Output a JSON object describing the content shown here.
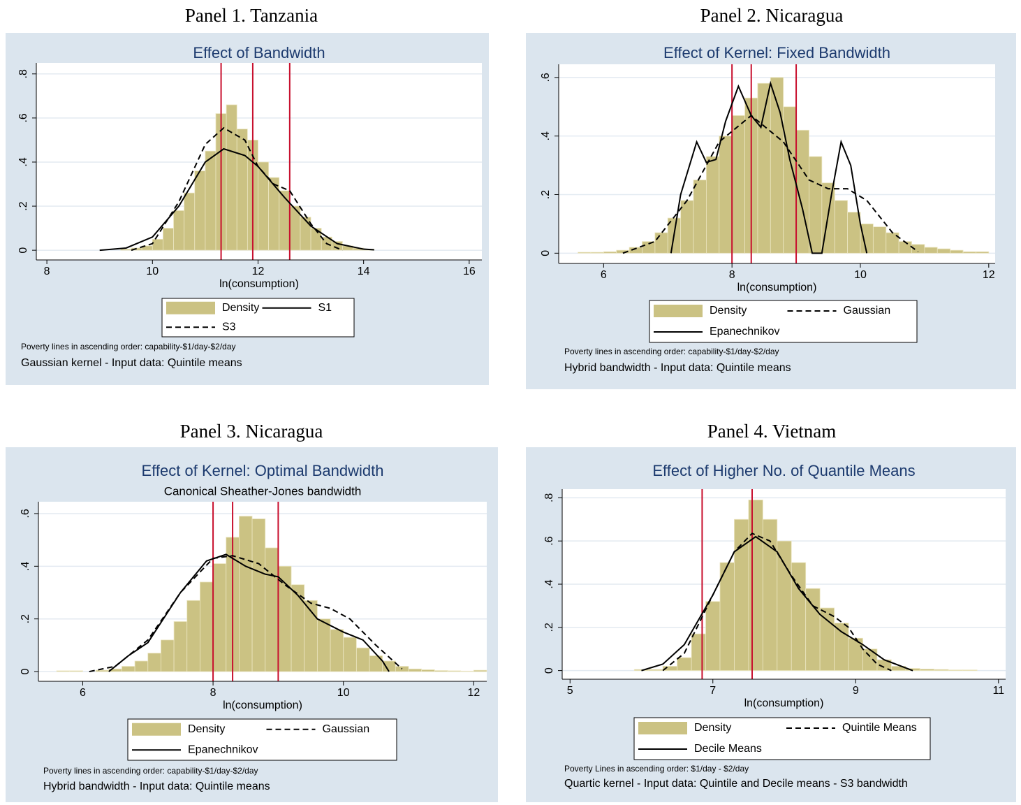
{
  "chart_data": [
    {
      "type": "histogram",
      "panel_title": "Panel 1. Tanzania",
      "title": "Effect of Bandwidth",
      "xlabel": "ln(consumption)",
      "hist_name": "Density",
      "hist_color": "#cbc283",
      "bins": [
        9.4,
        9.6,
        9.8,
        10.0,
        10.2,
        10.4,
        10.6,
        10.8,
        11.0,
        11.2,
        11.4,
        11.6,
        11.8,
        12.0,
        12.2,
        12.4,
        12.6,
        12.8,
        13.0,
        13.2,
        13.4,
        13.6,
        13.8,
        14.0,
        14.2
      ],
      "values": [
        0.005,
        0.01,
        0.02,
        0.05,
        0.1,
        0.18,
        0.26,
        0.36,
        0.45,
        0.62,
        0.66,
        0.55,
        0.5,
        0.4,
        0.33,
        0.27,
        0.2,
        0.15,
        0.1,
        0.06,
        0.04,
        0.02,
        0.01,
        0.005
      ],
      "series": [
        {
          "name": "S1",
          "color": "#000000",
          "style": "solid",
          "x": [
            9,
            9.5,
            10,
            10.5,
            11,
            11.35,
            11.75,
            12,
            12.5,
            13,
            13.5,
            14,
            14.2
          ],
          "values": [
            0,
            0.01,
            0.06,
            0.2,
            0.4,
            0.46,
            0.43,
            0.38,
            0.24,
            0.11,
            0.03,
            0.005,
            0.002
          ]
        },
        {
          "name": "S3",
          "color": "#000000",
          "style": "dashed",
          "x": [
            9.6,
            10,
            10.5,
            11,
            11.35,
            11.75,
            12,
            12.3,
            12.6,
            13,
            13.3,
            13.6
          ],
          "values": [
            0,
            0.03,
            0.22,
            0.48,
            0.555,
            0.5,
            0.38,
            0.3,
            0.27,
            0.12,
            0.03,
            0
          ]
        }
      ],
      "vlines": [
        11.3,
        11.9,
        12.6
      ],
      "vline_color": "#c8102e",
      "xlim": [
        7.8,
        16.24
      ],
      "xticks": [
        8,
        10,
        12,
        14,
        16
      ],
      "ylim": [
        -0.044,
        0.85
      ],
      "yticks": [
        0,
        {
          "value": 0.2,
          "label": ".2"
        },
        {
          "value": 0.4,
          "label": ".4"
        },
        {
          "value": 0.6,
          "label": ".6"
        },
        {
          "value": 0.8,
          "label": ".8"
        }
      ],
      "grid": true,
      "notes": [
        "Poverty lines in ascending order: capability-$1/day-$2/day",
        "Gaussian kernel - Input data: Quintile means"
      ]
    },
    {
      "type": "histogram",
      "panel_title": "Panel 2. Nicaragua",
      "title": "Effect of Kernel: Fixed Bandwidth",
      "xlabel": "ln(consumption)",
      "hist_name": "Density",
      "hist_color": "#cbc283",
      "bins": [
        5.6,
        5.8,
        6.0,
        6.2,
        6.4,
        6.6,
        6.8,
        7.0,
        7.2,
        7.4,
        7.6,
        7.8,
        8.0,
        8.2,
        8.4,
        8.6,
        8.8,
        9.0,
        9.2,
        9.4,
        9.6,
        9.8,
        10.0,
        10.2,
        10.4,
        10.6,
        10.8,
        11.0,
        11.2,
        11.4,
        11.6,
        11.8,
        12.0
      ],
      "values": [
        0.003,
        0.003,
        0.005,
        0.01,
        0.02,
        0.04,
        0.07,
        0.12,
        0.18,
        0.25,
        0.33,
        0.4,
        0.47,
        0.53,
        0.58,
        0.6,
        0.5,
        0.42,
        0.33,
        0.24,
        0.18,
        0.14,
        0.1,
        0.09,
        0.07,
        0.04,
        0.03,
        0.02,
        0.015,
        0.01,
        0.005,
        0.005
      ],
      "series": [
        {
          "name": "Gaussian",
          "color": "#000000",
          "style": "dashed",
          "x": [
            6.3,
            6.8,
            7.3,
            7.8,
            8.3,
            8.8,
            9.2,
            9.5,
            9.8,
            10.1,
            10.5,
            10.9
          ],
          "values": [
            0,
            0.04,
            0.18,
            0.38,
            0.47,
            0.38,
            0.25,
            0.22,
            0.22,
            0.18,
            0.07,
            0.005
          ]
        },
        {
          "name": "Epanechnikov",
          "color": "#000000",
          "style": "solid",
          "x": [
            7.05,
            7.2,
            7.45,
            7.6,
            7.75,
            7.9,
            8.1,
            8.3,
            8.45,
            8.6,
            8.75,
            8.9,
            9.1,
            9.25,
            9.4,
            9.55,
            9.7,
            9.85,
            10.0,
            10.1
          ],
          "values": [
            0,
            0.2,
            0.38,
            0.31,
            0.32,
            0.45,
            0.57,
            0.47,
            0.43,
            0.58,
            0.48,
            0.32,
            0.15,
            0,
            0,
            0.2,
            0.38,
            0.3,
            0.1,
            0
          ]
        }
      ],
      "vlines": [
        8.0,
        8.3,
        9.0
      ],
      "vline_color": "#c8102e",
      "xlim": [
        5.3,
        12.1
      ],
      "xticks": [
        6,
        8,
        10,
        12
      ],
      "ylim": [
        -0.035,
        0.645
      ],
      "yticks": [
        0,
        {
          "value": 0.2,
          "label": ".2"
        },
        {
          "value": 0.4,
          "label": ".4"
        },
        {
          "value": 0.6,
          "label": ".6"
        }
      ],
      "grid": true,
      "notes": [
        "Poverty lines in ascending order: capability-$1/day-$2/day",
        "Hybrid bandwidth - Input data: Quintile means"
      ]
    },
    {
      "type": "histogram",
      "panel_title": "Panel 3. Nicaragua",
      "title": "Effect of Kernel: Optimal Bandwidth",
      "subtitle": "Canonical Sheather-Jones bandwidth",
      "xlabel": "ln(consumption)",
      "hist_name": "Density",
      "hist_color": "#cbc283",
      "bins": [
        5.6,
        5.8,
        6.0,
        6.2,
        6.4,
        6.6,
        6.8,
        7.0,
        7.2,
        7.4,
        7.6,
        7.8,
        8.0,
        8.2,
        8.4,
        8.6,
        8.8,
        9.0,
        9.2,
        9.4,
        9.6,
        9.8,
        10.0,
        10.2,
        10.4,
        10.6,
        10.8,
        11.0,
        11.2,
        11.4,
        11.6,
        11.8,
        12.0,
        12.2
      ],
      "values": [
        0.003,
        0.003,
        0,
        0.005,
        0.01,
        0.02,
        0.04,
        0.07,
        0.12,
        0.19,
        0.27,
        0.34,
        0.41,
        0.51,
        0.59,
        0.58,
        0.47,
        0.4,
        0.33,
        0.27,
        0.2,
        0.16,
        0.13,
        0.09,
        0.06,
        0.04,
        0.02,
        0.01,
        0.007,
        0.004,
        0.003,
        0.002,
        0.005
      ],
      "series": [
        {
          "name": "Gaussian",
          "color": "#000000",
          "style": "dashed",
          "x": [
            6.1,
            6.5,
            7,
            7.5,
            8,
            8.3,
            8.7,
            9.1,
            9.5,
            9.8,
            10.1,
            10.5,
            10.9
          ],
          "values": [
            0,
            0.02,
            0.12,
            0.3,
            0.43,
            0.44,
            0.41,
            0.33,
            0.26,
            0.24,
            0.2,
            0.1,
            0.01
          ]
        },
        {
          "name": "Epanechnikov",
          "color": "#000000",
          "style": "solid",
          "x": [
            6.4,
            6.7,
            7,
            7.5,
            7.9,
            8.2,
            8.5,
            8.8,
            9.0,
            9.3,
            9.6,
            10.0,
            10.3,
            10.6,
            10.7
          ],
          "values": [
            0,
            0.06,
            0.11,
            0.3,
            0.42,
            0.445,
            0.4,
            0.37,
            0.36,
            0.29,
            0.2,
            0.15,
            0.12,
            0.04,
            0
          ]
        }
      ],
      "vlines": [
        8.0,
        8.3,
        9.0
      ],
      "vline_color": "#c8102e",
      "xlim": [
        5.32,
        12.2
      ],
      "xticks": [
        6,
        8,
        10,
        12
      ],
      "ylim": [
        -0.037,
        0.645
      ],
      "yticks": [
        0,
        {
          "value": 0.2,
          "label": ".2"
        },
        {
          "value": 0.4,
          "label": ".4"
        },
        {
          "value": 0.6,
          "label": ".6"
        }
      ],
      "grid": true,
      "notes": [
        "Poverty lines in ascending order: capability-$1/day-$2/day",
        "Hybrid bandwidth - Input data: Quintile means"
      ]
    },
    {
      "type": "histogram",
      "panel_title": "Panel 4. Vietnam",
      "title": "Effect of Higher No. of Quantile Means",
      "xlabel": "ln(consumption)",
      "hist_name": "Density",
      "hist_color": "#cbc283",
      "bins": [
        5.9,
        6.1,
        6.3,
        6.5,
        6.7,
        6.9,
        7.1,
        7.3,
        7.5,
        7.7,
        7.9,
        8.1,
        8.3,
        8.5,
        8.7,
        8.9,
        9.1,
        9.3,
        9.5,
        9.7,
        9.9,
        10.1,
        10.3,
        10.5,
        10.7
      ],
      "values": [
        0.005,
        0.005,
        0.02,
        0.06,
        0.17,
        0.32,
        0.5,
        0.7,
        0.79,
        0.7,
        0.6,
        0.5,
        0.38,
        0.29,
        0.22,
        0.15,
        0.1,
        0.05,
        0.02,
        0.01,
        0.007,
        0.005,
        0.003,
        0.003
      ],
      "series": [
        {
          "name": "Quintile Means",
          "color": "#000000",
          "style": "dashed",
          "x": [
            6.3,
            6.6,
            7,
            7.3,
            7.55,
            7.8,
            8.1,
            8.4,
            8.7,
            8.9,
            9.1,
            9.3,
            9.5
          ],
          "values": [
            0,
            0.08,
            0.35,
            0.55,
            0.635,
            0.6,
            0.44,
            0.3,
            0.25,
            0.2,
            0.1,
            0.03,
            0
          ]
        },
        {
          "name": "Decile Means",
          "color": "#000000",
          "style": "solid",
          "x": [
            6,
            6.3,
            6.6,
            7,
            7.3,
            7.6,
            7.9,
            8.2,
            8.5,
            8.8,
            9.1,
            9.4,
            9.8
          ],
          "values": [
            0,
            0.03,
            0.12,
            0.35,
            0.55,
            0.62,
            0.55,
            0.38,
            0.26,
            0.18,
            0.12,
            0.05,
            0
          ]
        }
      ],
      "vlines": [
        6.85,
        7.55
      ],
      "vline_color": "#c8102e",
      "xlim": [
        4.89,
        11.1
      ],
      "xticks": [
        5,
        7,
        9,
        11
      ],
      "ylim": [
        -0.04,
        0.84
      ],
      "yticks": [
        0,
        {
          "value": 0.2,
          "label": ".2"
        },
        {
          "value": 0.4,
          "label": ".4"
        },
        {
          "value": 0.6,
          "label": ".6"
        },
        {
          "value": 0.8,
          "label": ".8"
        }
      ],
      "grid": true,
      "notes": [
        "Poverty Lines in ascending order: $1/day - $2/day",
        "Quartic kernel - Input data: Quintile and Decile means - S3 bandwidth"
      ]
    }
  ]
}
